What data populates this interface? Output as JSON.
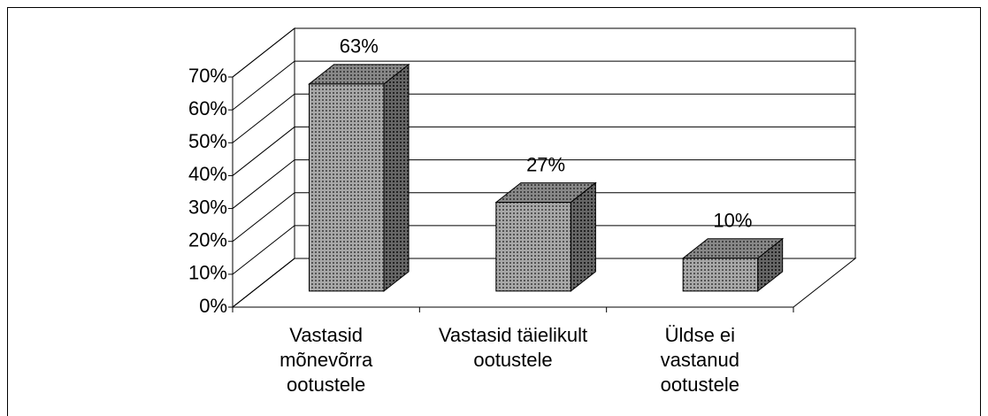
{
  "chart_data": {
    "type": "bar3d",
    "categories": [
      "Vastasid\nmõnevõrra\nootustele",
      "Vastasid täielikult\nootustele",
      "Üldse ei\nvastanud\nootustele"
    ],
    "values": [
      63,
      27,
      10
    ],
    "value_labels": [
      "63%",
      "27%",
      "10%"
    ],
    "color": "#9a9a9a",
    "ylim": [
      0,
      70
    ],
    "yticks": [
      {
        "value": 0,
        "label": "0%"
      },
      {
        "value": 10,
        "label": "10%"
      },
      {
        "value": 20,
        "label": "20%"
      },
      {
        "value": 30,
        "label": "30%"
      },
      {
        "value": 40,
        "label": "40%"
      },
      {
        "value": 50,
        "label": "50%"
      },
      {
        "value": 60,
        "label": "60%"
      },
      {
        "value": 70,
        "label": "70%"
      }
    ],
    "grid": true
  }
}
